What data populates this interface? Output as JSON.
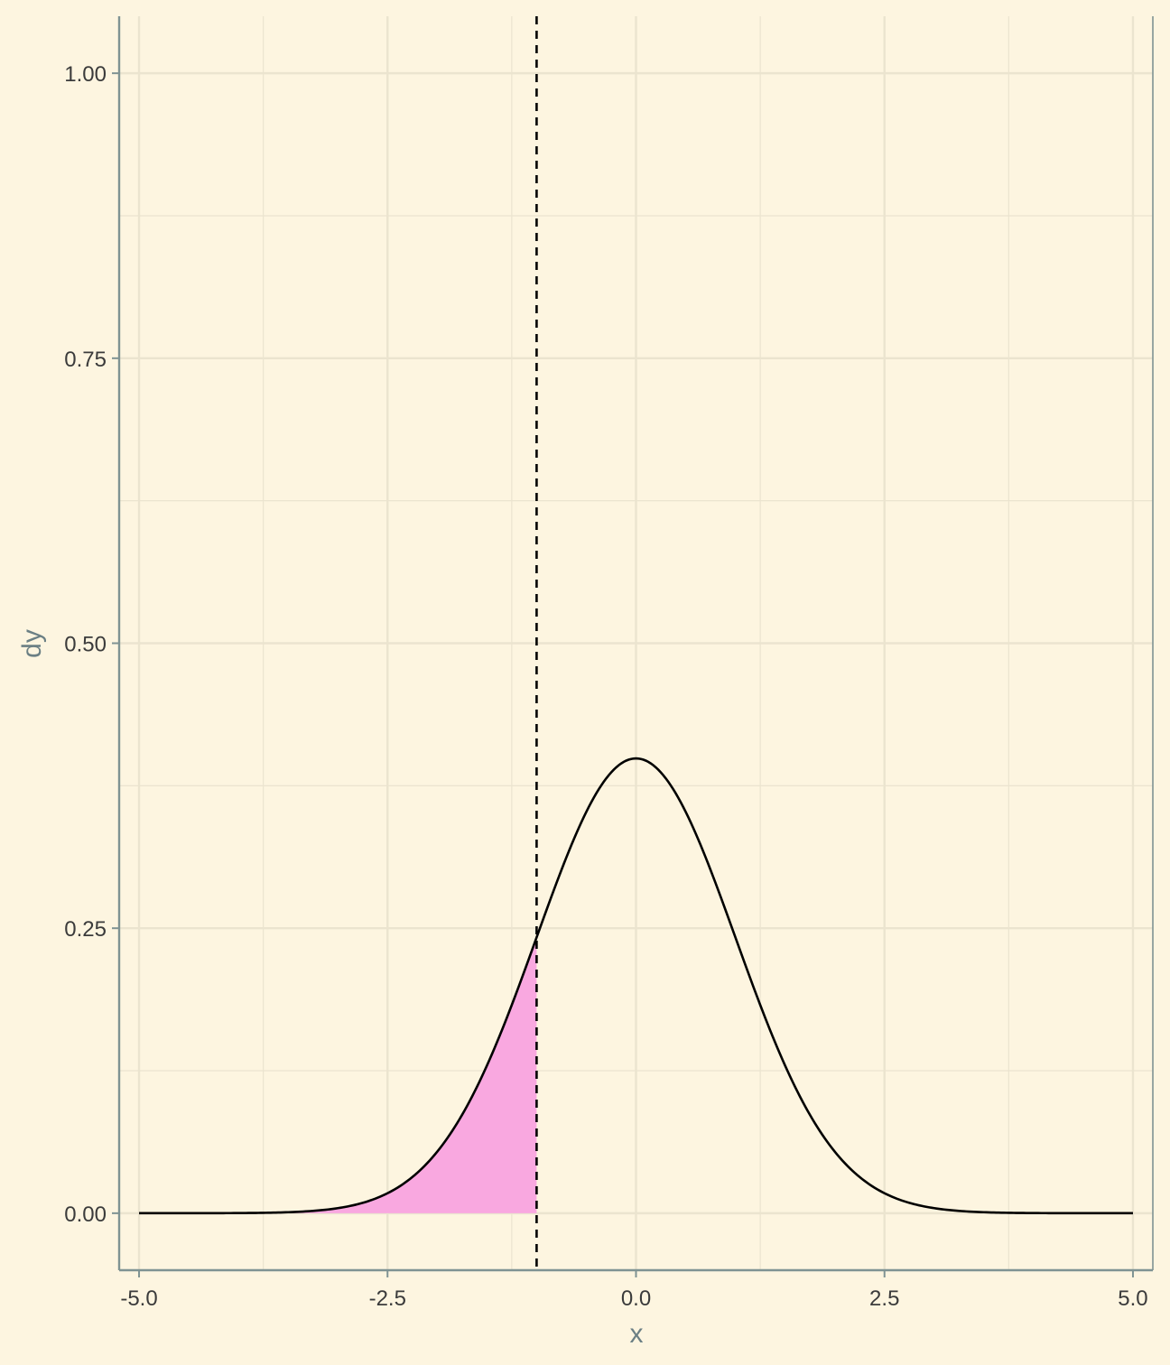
{
  "chart_data": {
    "type": "area",
    "xlabel": "x",
    "ylabel": "dy",
    "xlim": [
      -5.2,
      5.2
    ],
    "ylim": [
      -0.05,
      1.05
    ],
    "x_ticks": [
      -5.0,
      -2.5,
      0.0,
      2.5,
      5.0
    ],
    "x_tick_labels": [
      "-5.0",
      "-2.5",
      "0.0",
      "2.5",
      "5.0"
    ],
    "y_ticks": [
      0.0,
      0.25,
      0.5,
      0.75,
      1.0
    ],
    "y_tick_labels": [
      "0.00",
      "0.25",
      "0.50",
      "0.75",
      "1.00"
    ],
    "grid": true,
    "curve": {
      "distribution": "normal",
      "mean": 0,
      "sd": 1,
      "x_range": [
        -5,
        5
      ],
      "sample_points": [
        {
          "x": -5.0,
          "y": 0.0
        },
        {
          "x": -3.0,
          "y": 0.004
        },
        {
          "x": -2.5,
          "y": 0.018
        },
        {
          "x": -2.0,
          "y": 0.054
        },
        {
          "x": -1.5,
          "y": 0.13
        },
        {
          "x": -1.0,
          "y": 0.242
        },
        {
          "x": -0.5,
          "y": 0.352
        },
        {
          "x": 0.0,
          "y": 0.399
        },
        {
          "x": 0.5,
          "y": 0.352
        },
        {
          "x": 1.0,
          "y": 0.242
        },
        {
          "x": 1.5,
          "y": 0.13
        },
        {
          "x": 2.0,
          "y": 0.054
        },
        {
          "x": 2.5,
          "y": 0.018
        },
        {
          "x": 3.0,
          "y": 0.004
        },
        {
          "x": 5.0,
          "y": 0.0
        }
      ]
    },
    "shaded_region": {
      "x_from": -5,
      "x_to": -1,
      "color": "#f9a8e0"
    },
    "vline": {
      "x": -1,
      "style": "dashed"
    }
  },
  "colors": {
    "background": "#fdf5e0",
    "grid": "#ebe4cf",
    "axis": "#7f9393",
    "curve": "#000000",
    "fill": "#f9a8e0"
  }
}
